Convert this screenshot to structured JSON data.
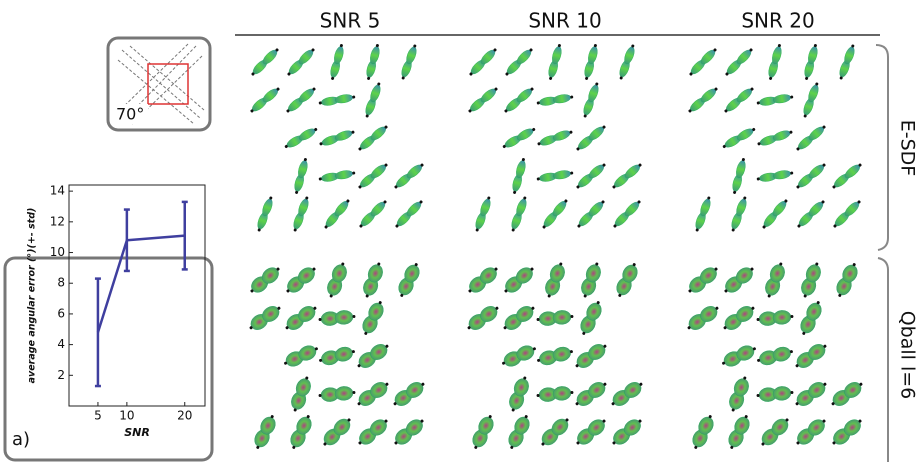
{
  "headers": [
    "SNR 5",
    "SNR 10",
    "SNR 20"
  ],
  "row_labels": [
    "E-SDF",
    "Qball l=6"
  ],
  "inset": {
    "label": "70°"
  },
  "panel_label": "a)",
  "chart_data": {
    "type": "line",
    "x": [
      5,
      10,
      20
    ],
    "series": [
      {
        "color": "#3f3f9f",
        "values": [
          4.8,
          10.8,
          11.1
        ],
        "errors": [
          3.5,
          2.0,
          2.2
        ]
      }
    ],
    "xlim": [
      0,
      23.5
    ],
    "ylim": [
      0,
      14.4
    ],
    "xticks": [
      5,
      10,
      20
    ],
    "yticks": [
      2,
      4,
      6,
      8,
      10,
      12,
      14
    ],
    "x_label": "SNR",
    "y_label": "average angular error (°)(+- std)"
  }
}
